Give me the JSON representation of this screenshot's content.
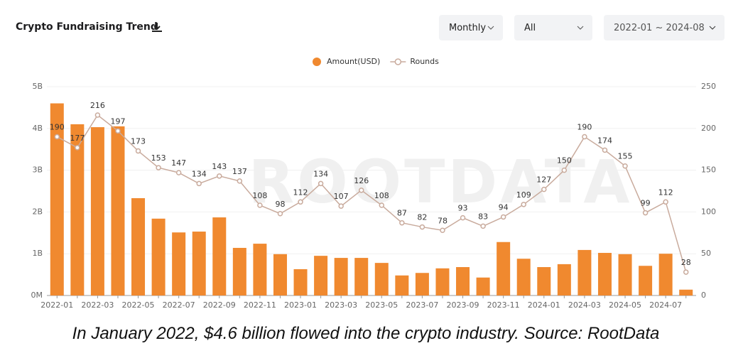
{
  "header": {
    "controls": [
      "Monthly",
      "All",
      "2022-01 ~ 2024-08"
    ]
  },
  "chart_data": {
    "type": "bar",
    "title": "Crypto Fundraising Trend",
    "watermark": "ROOTDATA",
    "caption": "In January 2022, $4.6 billion flowed into the crypto industry. Source: RootData",
    "legend": "top",
    "categories": [
      "2022-01",
      null,
      "2022-03",
      null,
      "2022-05",
      null,
      "2022-07",
      null,
      "2022-09",
      null,
      "2022-11",
      null,
      "2023-01",
      null,
      "2023-03",
      null,
      "2023-05",
      null,
      "2023-07",
      null,
      "2023-09",
      null,
      "2023-11",
      null,
      "2024-01",
      null,
      "2024-03",
      null,
      "2024-05",
      null,
      "2024-07",
      null
    ],
    "series": [
      {
        "name": "Amount(USD)",
        "color": "#f0892f",
        "values": [
          4.6,
          4.1,
          4.03,
          4.05,
          2.33,
          1.84,
          1.51,
          1.53,
          1.87,
          1.14,
          1.24,
          0.99,
          0.63,
          0.95,
          0.9,
          0.9,
          0.78,
          0.48,
          0.54,
          0.65,
          0.68,
          0.43,
          1.28,
          0.88,
          0.68,
          0.75,
          1.09,
          1.02,
          0.99,
          0.71,
          1.0,
          0.14
        ]
      },
      {
        "name": "Rounds",
        "type": "line",
        "axis": "y2",
        "color": "#c9ab9d",
        "values": [
          190,
          177,
          216,
          197,
          173,
          153,
          147,
          134,
          143,
          137,
          108,
          98,
          112,
          134,
          107,
          126,
          108,
          87,
          82,
          78,
          93,
          83,
          94,
          109,
          127,
          150,
          190,
          174,
          155,
          99,
          112,
          28
        ]
      }
    ],
    "ylim": [
      0,
      5
    ],
    "yticks": [
      {
        "value": 0,
        "label": "0M"
      },
      {
        "value": 1,
        "label": "1B"
      },
      {
        "value": 2,
        "label": "2B"
      },
      {
        "value": 3,
        "label": "3B"
      },
      {
        "value": 4,
        "label": "4B"
      },
      {
        "value": 5,
        "label": "5B"
      }
    ],
    "y2lim": [
      0,
      250
    ],
    "y2ticks": [
      0,
      50,
      100,
      150,
      200,
      250
    ],
    "grid": true
  }
}
